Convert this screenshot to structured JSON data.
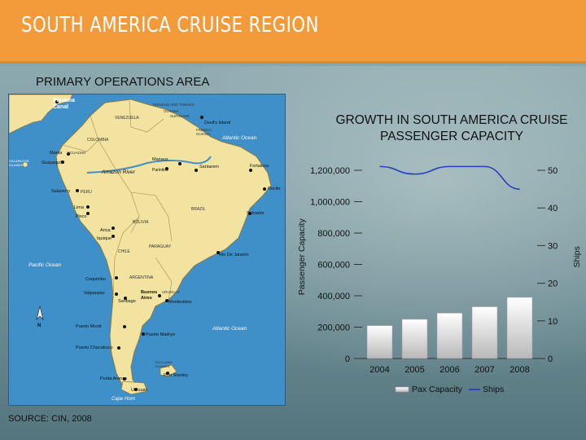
{
  "header": {
    "title": "SOUTH AMERICA CRUISE REGION"
  },
  "section_label": "PRIMARY OPERATIONS AREA",
  "source": "SOURCE: CIN, 2008",
  "map": {
    "labels": [
      {
        "key": "panama_canal",
        "text": "Panama Canal"
      },
      {
        "key": "trinidad",
        "text": "TRINIDAD AND TOBAGO"
      },
      {
        "key": "guyana",
        "text": "GUYANA"
      },
      {
        "key": "suriname",
        "text": "SURINAME"
      },
      {
        "key": "venezuela",
        "text": "VENEZUELA"
      },
      {
        "key": "devils_island",
        "text": "Devil's Island"
      },
      {
        "key": "french_guiana",
        "text": "FRENCH GUIANA"
      },
      {
        "key": "colombia",
        "text": "COLOMBIA"
      },
      {
        "key": "atlantic_top",
        "text": "Atlantic Ocean"
      },
      {
        "key": "manta",
        "text": "Manta"
      },
      {
        "key": "ecuador",
        "text": "ECUADOR"
      },
      {
        "key": "galapagos",
        "text": "GALAPAGOS ISLANDS"
      },
      {
        "key": "guayaquil",
        "text": "Guayaquil"
      },
      {
        "key": "manaus",
        "text": "Manaus"
      },
      {
        "key": "parintins",
        "text": "Parintins"
      },
      {
        "key": "santarem",
        "text": "Santarem"
      },
      {
        "key": "fortaleza",
        "text": "Fortaleza"
      },
      {
        "key": "amazon_river",
        "text": "Amazon River"
      },
      {
        "key": "salaverry",
        "text": "Salaverry"
      },
      {
        "key": "peru",
        "text": "PERU"
      },
      {
        "key": "recife",
        "text": "Recife"
      },
      {
        "key": "lima",
        "text": "Lima"
      },
      {
        "key": "pisco",
        "text": "Pisco"
      },
      {
        "key": "brazil",
        "text": "BRAZIL"
      },
      {
        "key": "salvador",
        "text": "Salvador"
      },
      {
        "key": "bolivia",
        "text": "BOLIVIA"
      },
      {
        "key": "arica",
        "text": "Arica"
      },
      {
        "key": "iquique",
        "text": "Iquique"
      },
      {
        "key": "paraguay",
        "text": "PARAGUAY"
      },
      {
        "key": "chile",
        "text": "CHILE"
      },
      {
        "key": "rio",
        "text": "Rio De Janeiro"
      },
      {
        "key": "pacific",
        "text": "Pacific Ocean"
      },
      {
        "key": "argentina",
        "text": "ARGENTINA"
      },
      {
        "key": "coquimbo",
        "text": "Coquimbo"
      },
      {
        "key": "valparaiso",
        "text": "Valparaiso"
      },
      {
        "key": "buenos_aires",
        "text": "Buenos Aires"
      },
      {
        "key": "uruguay",
        "text": "URUGUAY"
      },
      {
        "key": "montevideo",
        "text": "Montevideo"
      },
      {
        "key": "santiago",
        "text": "Santiago"
      },
      {
        "key": "north",
        "text": "N"
      },
      {
        "key": "puerto_montt",
        "text": "Puerto Montt"
      },
      {
        "key": "puerto_madryn",
        "text": "Puerto Madryn"
      },
      {
        "key": "atlantic_bottom",
        "text": "Atlantic Ocean"
      },
      {
        "key": "puerto_chacabuco",
        "text": "Puerto Chacabuco"
      },
      {
        "key": "falkland",
        "text": "FALKLAND ISLANDS"
      },
      {
        "key": "port_stanley",
        "text": "Port Stanley"
      },
      {
        "key": "punta_arenas",
        "text": "Punta Arenas"
      },
      {
        "key": "ushuaia",
        "text": "Ushuaia"
      },
      {
        "key": "cape_horn",
        "text": "Cape Horn"
      }
    ]
  },
  "colors": {
    "bar_light": "#ffffff",
    "bar_dark": "#b8b8b8",
    "line": "#2a3fbf",
    "banner": "#f39a3a",
    "ocean": "#3f8fc9",
    "land": "#f2e4a0"
  },
  "chart_data": {
    "type": "bar",
    "title": "GROWTH IN SOUTH AMERICA CRUISE PASSENGER CAPACITY",
    "categories": [
      "2004",
      "2005",
      "2006",
      "2007",
      "2008"
    ],
    "series": [
      {
        "name": "Pax Capacity",
        "type": "bar",
        "axis": "left",
        "values": [
          210000,
          250000,
          290000,
          330000,
          390000
        ]
      },
      {
        "name": "Ships",
        "type": "line",
        "axis": "right",
        "values": [
          51,
          49,
          51,
          51,
          45
        ]
      }
    ],
    "ylabel": "Passenger Capacity",
    "y2label": "Ships",
    "ylim": [
      0,
      1200000
    ],
    "y2lim": [
      0,
      50
    ],
    "yticks": [
      "0",
      "200,000",
      "400,000",
      "600,000",
      "800,000",
      "1,000,000",
      "1,200,000"
    ],
    "y2ticks": [
      "0",
      "10",
      "20",
      "30",
      "40",
      "50"
    ],
    "legend": "bottom"
  }
}
